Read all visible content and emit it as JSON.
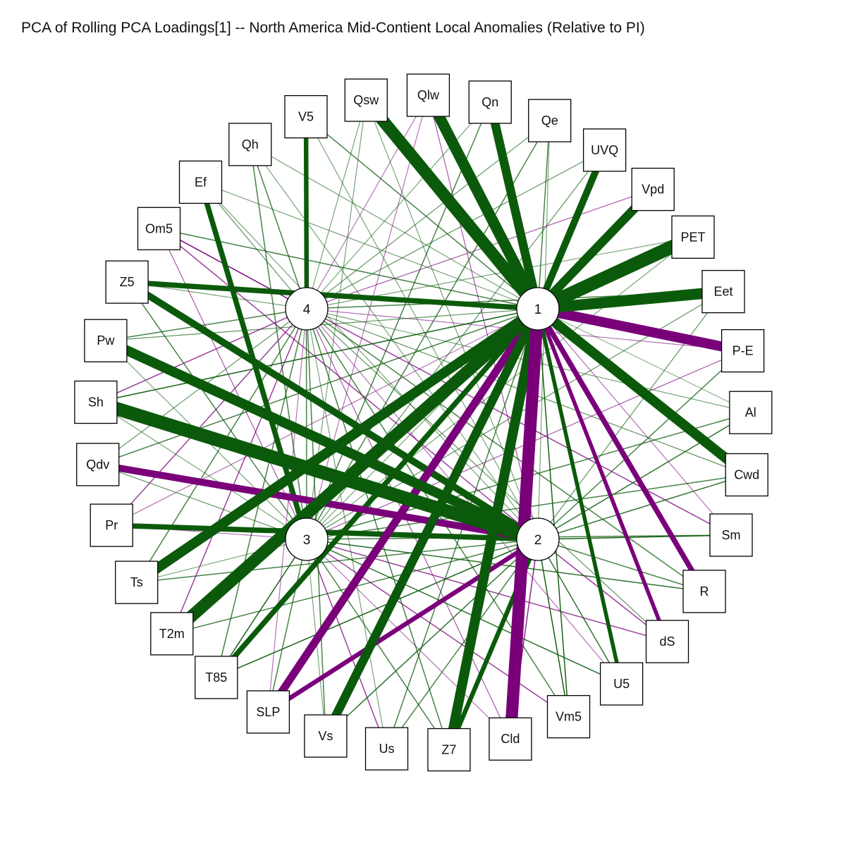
{
  "title": "PCA of Rolling PCA Loadings[1] -- North America Mid-Contient Local Anomalies (Relative to PI)",
  "colors": {
    "positive": "#0b5a0b",
    "negative": "#7a007a"
  },
  "components": [
    "1",
    "2",
    "3",
    "4"
  ],
  "variables": [
    "Qsw",
    "Qlw",
    "Qn",
    "Qe",
    "UVQ",
    "Vpd",
    "PET",
    "Eet",
    "P-E",
    "Al",
    "Cwd",
    "Sm",
    "R",
    "dS",
    "U5",
    "Vm5",
    "Cld",
    "Z7",
    "Us",
    "Vs",
    "SLP",
    "T85",
    "T2m",
    "Ts",
    "Pr",
    "Qdv",
    "Sh",
    "Pw",
    "Z5",
    "Om5",
    "Ef",
    "Qh",
    "V5"
  ],
  "edges": [
    {
      "c": "1",
      "v": "Qsw",
      "w": 0.95
    },
    {
      "c": "1",
      "v": "Qlw",
      "w": 0.9
    },
    {
      "c": "1",
      "v": "Qn",
      "w": 0.8
    },
    {
      "c": "1",
      "v": "Qe",
      "w": 0.3
    },
    {
      "c": "1",
      "v": "UVQ",
      "w": 0.7
    },
    {
      "c": "1",
      "v": "Vpd",
      "w": 0.8
    },
    {
      "c": "1",
      "v": "PET",
      "w": 1.0
    },
    {
      "c": "1",
      "v": "Eet",
      "w": 0.9
    },
    {
      "c": "1",
      "v": "P-E",
      "w": -0.85
    },
    {
      "c": "1",
      "v": "Al",
      "w": 0.15
    },
    {
      "c": "1",
      "v": "Cwd",
      "w": 0.85
    },
    {
      "c": "1",
      "v": "Sm",
      "w": -0.2
    },
    {
      "c": "1",
      "v": "R",
      "w": -0.6
    },
    {
      "c": "1",
      "v": "dS",
      "w": -0.5
    },
    {
      "c": "1",
      "v": "U5",
      "w": 0.5
    },
    {
      "c": "1",
      "v": "Vm5",
      "w": 0.4
    },
    {
      "c": "1",
      "v": "Cld",
      "w": -0.95
    },
    {
      "c": "1",
      "v": "Z7",
      "w": 0.85
    },
    {
      "c": "1",
      "v": "Us",
      "w": 0.3
    },
    {
      "c": "1",
      "v": "Vs",
      "w": 0.8
    },
    {
      "c": "1",
      "v": "SLP",
      "w": -0.75
    },
    {
      "c": "1",
      "v": "T85",
      "w": 0.6
    },
    {
      "c": "1",
      "v": "T2m",
      "w": 0.95
    },
    {
      "c": "1",
      "v": "Ts",
      "w": 0.85
    },
    {
      "c": "1",
      "v": "Pr",
      "w": -0.2
    },
    {
      "c": "1",
      "v": "Qdv",
      "w": 0.3
    },
    {
      "c": "1",
      "v": "Sh",
      "w": 0.4
    },
    {
      "c": "1",
      "v": "Pw",
      "w": 0.25
    },
    {
      "c": "1",
      "v": "Z5",
      "w": 0.6
    },
    {
      "c": "1",
      "v": "Om5",
      "w": 0.3
    },
    {
      "c": "1",
      "v": "Ef",
      "w": 0.2
    },
    {
      "c": "1",
      "v": "Qh",
      "w": 0.2
    },
    {
      "c": "1",
      "v": "V5",
      "w": 0.3
    },
    {
      "c": "2",
      "v": "Sh",
      "w": 1.0
    },
    {
      "c": "2",
      "v": "Pw",
      "w": 0.85
    },
    {
      "c": "2",
      "v": "Qdv",
      "w": -0.7
    },
    {
      "c": "2",
      "v": "Pr",
      "w": 0.6
    },
    {
      "c": "2",
      "v": "Ts",
      "w": 0.3
    },
    {
      "c": "2",
      "v": "T2m",
      "w": 0.3
    },
    {
      "c": "2",
      "v": "T85",
      "w": 0.4
    },
    {
      "c": "2",
      "v": "SLP",
      "w": -0.55
    },
    {
      "c": "2",
      "v": "Vs",
      "w": 0.35
    },
    {
      "c": "2",
      "v": "Us",
      "w": 0.3
    },
    {
      "c": "2",
      "v": "Z7",
      "w": 0.55
    },
    {
      "c": "2",
      "v": "Cld",
      "w": -0.35
    },
    {
      "c": "2",
      "v": "Vm5",
      "w": 0.4
    },
    {
      "c": "2",
      "v": "U5",
      "w": 0.35
    },
    {
      "c": "2",
      "v": "dS",
      "w": -0.3
    },
    {
      "c": "2",
      "v": "R",
      "w": 0.3
    },
    {
      "c": "2",
      "v": "Sm",
      "w": 0.4
    },
    {
      "c": "2",
      "v": "Cwd",
      "w": 0.35
    },
    {
      "c": "2",
      "v": "Al",
      "w": 0.35
    },
    {
      "c": "2",
      "v": "P-E",
      "w": 0.3
    },
    {
      "c": "2",
      "v": "Eet",
      "w": 0.25
    },
    {
      "c": "2",
      "v": "Z5",
      "w": 0.7
    },
    {
      "c": "2",
      "v": "Om5",
      "w": -0.3
    },
    {
      "c": "2",
      "v": "Ef",
      "w": 0.2
    },
    {
      "c": "2",
      "v": "Qh",
      "w": 0.2
    },
    {
      "c": "2",
      "v": "V5",
      "w": 0.2
    },
    {
      "c": "2",
      "v": "Qsw",
      "w": 0.2
    },
    {
      "c": "2",
      "v": "Qlw",
      "w": -0.25
    },
    {
      "c": "2",
      "v": "Qe",
      "w": 0.2
    },
    {
      "c": "3",
      "v": "Ef",
      "w": 0.6
    },
    {
      "c": "3",
      "v": "Qn",
      "w": 0.3
    },
    {
      "c": "3",
      "v": "UVQ",
      "w": 0.25
    },
    {
      "c": "3",
      "v": "T85",
      "w": 0.4
    },
    {
      "c": "3",
      "v": "SLP",
      "w": 0.3
    },
    {
      "c": "3",
      "v": "Us",
      "w": -0.3
    },
    {
      "c": "3",
      "v": "Qsw",
      "w": 0.2
    },
    {
      "c": "3",
      "v": "Qlw",
      "w": -0.2
    },
    {
      "c": "3",
      "v": "Qe",
      "w": 0.3
    },
    {
      "c": "3",
      "v": "Vpd",
      "w": 0.2
    },
    {
      "c": "3",
      "v": "PET",
      "w": 0.2
    },
    {
      "c": "3",
      "v": "Eet",
      "w": 0.25
    },
    {
      "c": "3",
      "v": "P-E",
      "w": -0.25
    },
    {
      "c": "3",
      "v": "Al",
      "w": 0.3
    },
    {
      "c": "3",
      "v": "Cwd",
      "w": 0.3
    },
    {
      "c": "3",
      "v": "Sm",
      "w": 0.3
    },
    {
      "c": "3",
      "v": "R",
      "w": 0.35
    },
    {
      "c": "3",
      "v": "dS",
      "w": -0.3
    },
    {
      "c": "3",
      "v": "U5",
      "w": 0.35
    },
    {
      "c": "3",
      "v": "Vm5",
      "w": -0.3
    },
    {
      "c": "3",
      "v": "Cld",
      "w": -0.2
    },
    {
      "c": "3",
      "v": "Z7",
      "w": 0.3
    },
    {
      "c": "3",
      "v": "Vs",
      "w": 0.2
    },
    {
      "c": "3",
      "v": "Ts",
      "w": 0.2
    },
    {
      "c": "3",
      "v": "Pr",
      "w": -0.2
    },
    {
      "c": "3",
      "v": "Qdv",
      "w": 0.25
    },
    {
      "c": "3",
      "v": "Sh",
      "w": 0.2
    },
    {
      "c": "3",
      "v": "Pw",
      "w": 0.2
    },
    {
      "c": "3",
      "v": "Z5",
      "w": 0.3
    },
    {
      "c": "3",
      "v": "Om5",
      "w": -0.25
    },
    {
      "c": "3",
      "v": "Qh",
      "w": 0.3
    },
    {
      "c": "3",
      "v": "V5",
      "w": 0.3
    },
    {
      "c": "4",
      "v": "V5",
      "w": 0.55
    },
    {
      "c": "4",
      "v": "Om5",
      "w": -0.4
    },
    {
      "c": "4",
      "v": "Qsw",
      "w": 0.2
    },
    {
      "c": "4",
      "v": "Qlw",
      "w": -0.2
    },
    {
      "c": "4",
      "v": "Qn",
      "w": 0.2
    },
    {
      "c": "4",
      "v": "Qe",
      "w": 0.25
    },
    {
      "c": "4",
      "v": "UVQ",
      "w": 0.25
    },
    {
      "c": "4",
      "v": "Vpd",
      "w": -0.25
    },
    {
      "c": "4",
      "v": "PET",
      "w": 0.2
    },
    {
      "c": "4",
      "v": "Eet",
      "w": 0.3
    },
    {
      "c": "4",
      "v": "P-E",
      "w": -0.2
    },
    {
      "c": "4",
      "v": "Al",
      "w": 0.2
    },
    {
      "c": "4",
      "v": "Cwd",
      "w": 0.25
    },
    {
      "c": "4",
      "v": "Sm",
      "w": -0.3
    },
    {
      "c": "4",
      "v": "R",
      "w": 0.3
    },
    {
      "c": "4",
      "v": "dS",
      "w": 0.25
    },
    {
      "c": "4",
      "v": "U5",
      "w": -0.2
    },
    {
      "c": "4",
      "v": "Vm5",
      "w": 0.3
    },
    {
      "c": "4",
      "v": "Cld",
      "w": -0.25
    },
    {
      "c": "4",
      "v": "Z7",
      "w": 0.3
    },
    {
      "c": "4",
      "v": "Us",
      "w": 0.2
    },
    {
      "c": "4",
      "v": "Vs",
      "w": 0.3
    },
    {
      "c": "4",
      "v": "SLP",
      "w": -0.2
    },
    {
      "c": "4",
      "v": "T85",
      "w": 0.3
    },
    {
      "c": "4",
      "v": "T2m",
      "w": -0.3
    },
    {
      "c": "4",
      "v": "Ts",
      "w": 0.3
    },
    {
      "c": "4",
      "v": "Pr",
      "w": -0.3
    },
    {
      "c": "4",
      "v": "Qdv",
      "w": 0.25
    },
    {
      "c": "4",
      "v": "Sh",
      "w": -0.3
    },
    {
      "c": "4",
      "v": "Pw",
      "w": 0.3
    },
    {
      "c": "4",
      "v": "Z5",
      "w": 0.2
    },
    {
      "c": "4",
      "v": "Ef",
      "w": 0.25
    },
    {
      "c": "4",
      "v": "Qh",
      "w": 0.3
    }
  ]
}
